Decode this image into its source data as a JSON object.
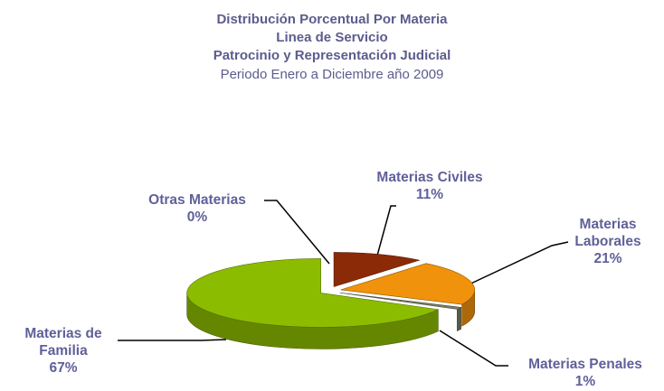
{
  "chart_data": {
    "type": "pie",
    "title": [
      "Distribución Porcentual Por Materia",
      "Linea de Servicio",
      "Patrocinio y Representación Judicial"
    ],
    "subtitle": "Periodo Enero a Diciembre año 2009",
    "categories": [
      "Materias Civiles",
      "Materias Laborales",
      "Materias Penales",
      "Materias de Familia",
      "Otras Materias"
    ],
    "values": [
      11,
      21,
      1,
      67,
      0
    ],
    "value_labels": [
      "11%",
      "21%",
      "1%",
      "67%",
      "0%"
    ],
    "colors": [
      "#8b2a06",
      "#f0920c",
      "#7b7d62",
      "#8cbc00",
      "#6e76b8"
    ]
  }
}
